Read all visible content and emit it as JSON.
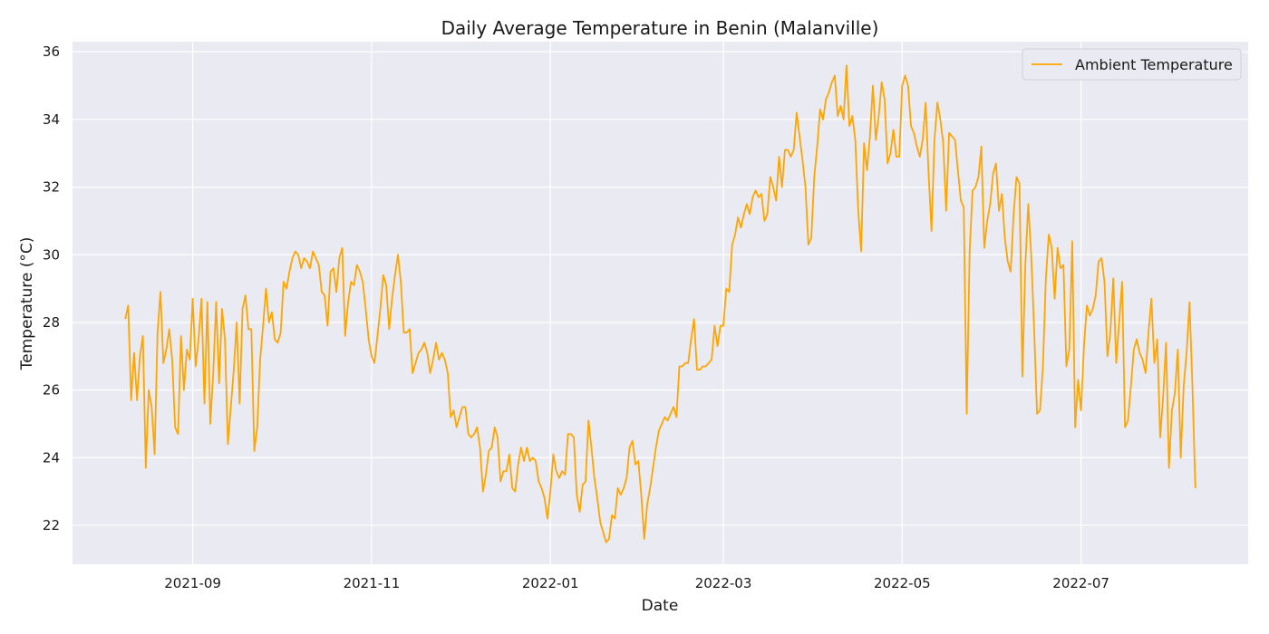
{
  "chart_data": {
    "type": "line",
    "title": "Daily Average Temperature in Benin (Malanville)",
    "xlabel": "Date",
    "ylabel": "Temperature (°C)",
    "x_start": "2021-08-09",
    "x_end": "2022-08-09",
    "xlim": [
      "2021-07-22",
      "2022-08-27"
    ],
    "ylim": [
      20.85,
      36.3
    ],
    "x_ticks": [
      {
        "date": "2021-09-01",
        "label": "2021-09"
      },
      {
        "date": "2021-11-01",
        "label": "2021-11"
      },
      {
        "date": "2022-01-01",
        "label": "2022-01"
      },
      {
        "date": "2022-03-01",
        "label": "2022-03"
      },
      {
        "date": "2022-05-01",
        "label": "2022-05"
      },
      {
        "date": "2022-07-01",
        "label": "2022-07"
      }
    ],
    "y_ticks": [
      22,
      24,
      26,
      28,
      30,
      32,
      34,
      36
    ],
    "grid": true,
    "legend": {
      "position": "upper-right"
    },
    "colors": {
      "line": "#FFA500",
      "plot_bg": "#EAEAF2",
      "grid": "#FFFFFF"
    },
    "series": [
      {
        "name": "Ambient Temperature",
        "values": [
          28.1,
          28.5,
          25.7,
          27.1,
          25.7,
          27.0,
          27.6,
          23.7,
          26.0,
          25.5,
          24.1,
          27.7,
          28.9,
          26.8,
          27.2,
          27.8,
          26.9,
          24.9,
          24.7,
          27.6,
          26.0,
          27.2,
          26.9,
          28.7,
          26.7,
          27.5,
          28.7,
          25.6,
          28.6,
          25.0,
          26.5,
          28.6,
          26.2,
          28.4,
          27.5,
          24.4,
          25.5,
          26.6,
          28.0,
          25.6,
          28.4,
          28.8,
          27.8,
          27.8,
          24.2,
          24.9,
          26.9,
          27.9,
          29.0,
          28.0,
          28.3,
          27.5,
          27.4,
          27.7,
          29.2,
          29.0,
          29.5,
          29.9,
          30.1,
          30.0,
          29.6,
          29.9,
          29.8,
          29.6,
          30.1,
          29.9,
          29.7,
          28.9,
          28.8,
          27.9,
          29.5,
          29.6,
          28.9,
          29.9,
          30.2,
          27.6,
          28.6,
          29.2,
          29.1,
          29.7,
          29.5,
          29.2,
          28.4,
          27.5,
          27.0,
          26.8,
          27.6,
          28.4,
          29.4,
          29.1,
          27.8,
          28.7,
          29.4,
          30.0,
          29.2,
          27.7,
          27.7,
          27.8,
          26.5,
          26.8,
          27.1,
          27.2,
          27.4,
          27.1,
          26.5,
          26.9,
          27.4,
          26.9,
          27.1,
          26.9,
          26.5,
          25.2,
          25.4,
          24.9,
          25.2,
          25.5,
          25.5,
          24.7,
          24.6,
          24.7,
          24.9,
          24.3,
          23.0,
          23.5,
          24.2,
          24.3,
          24.9,
          24.6,
          23.3,
          23.6,
          23.6,
          24.1,
          23.1,
          23.0,
          23.8,
          24.3,
          23.9,
          24.3,
          23.9,
          24.0,
          23.9,
          23.3,
          23.1,
          22.8,
          22.2,
          23.0,
          24.1,
          23.6,
          23.4,
          23.6,
          23.5,
          24.7,
          24.7,
          24.6,
          22.9,
          22.4,
          23.2,
          23.3,
          25.1,
          24.3,
          23.4,
          22.8,
          22.1,
          21.8,
          21.5,
          21.6,
          22.3,
          22.2,
          23.1,
          22.9,
          23.1,
          23.4,
          24.3,
          24.5,
          23.8,
          23.9,
          22.9,
          21.6,
          22.6,
          23.1,
          23.7,
          24.3,
          24.8,
          25.0,
          25.2,
          25.1,
          25.3,
          25.5,
          25.2,
          26.7,
          26.7,
          26.8,
          26.8,
          27.5,
          28.1,
          26.6,
          26.6,
          26.7,
          26.7,
          26.8,
          26.9,
          27.9,
          27.3,
          27.9,
          27.9,
          29.0,
          28.9,
          30.3,
          30.6,
          31.1,
          30.8,
          31.2,
          31.5,
          31.2,
          31.7,
          31.9,
          31.7,
          31.8,
          31.0,
          31.2,
          32.3,
          32.0,
          31.6,
          32.9,
          32.0,
          33.1,
          33.1,
          32.9,
          33.1,
          34.2,
          33.5,
          32.8,
          32.0,
          30.3,
          30.5,
          32.3,
          33.2,
          34.3,
          34.0,
          34.6,
          34.8,
          35.1,
          35.3,
          34.1,
          34.4,
          34.0,
          35.6,
          33.8,
          34.1,
          33.4,
          31.3,
          30.1,
          33.3,
          32.5,
          33.5,
          35.0,
          33.4,
          34.1,
          35.1,
          34.6,
          32.7,
          33.0,
          33.7,
          32.9,
          32.9,
          35.0,
          35.3,
          35.0,
          33.8,
          33.6,
          33.2,
          32.9,
          33.4,
          34.5,
          32.4,
          30.7,
          33.4,
          34.5,
          34.0,
          33.3,
          31.3,
          33.6,
          33.5,
          33.4,
          32.5,
          31.6,
          31.4,
          25.3,
          30.1,
          31.9,
          32.0,
          32.3,
          33.2,
          30.2,
          31.0,
          31.5,
          32.4,
          32.7,
          31.3,
          31.8,
          30.5,
          29.8,
          29.5,
          31.2,
          32.3,
          32.1,
          26.4,
          29.7,
          31.5,
          30.0,
          27.8,
          25.3,
          25.4,
          26.7,
          29.3,
          30.6,
          30.2,
          28.7,
          30.2,
          29.6,
          29.7,
          26.7,
          27.2,
          30.4,
          24.9,
          26.3,
          25.4,
          27.3,
          28.5,
          28.2,
          28.4,
          28.8,
          29.8,
          29.9,
          29.2,
          27.0,
          27.7,
          29.3,
          26.8,
          28.0,
          29.2,
          24.9,
          25.1,
          26.1,
          27.2,
          27.5,
          27.1,
          26.9,
          26.5,
          27.7,
          28.7,
          26.8,
          27.5,
          24.6,
          25.8,
          27.4,
          23.7,
          25.4,
          25.9,
          27.2,
          24.0,
          26.1,
          27.1,
          28.6,
          26.1,
          23.1
        ]
      }
    ]
  }
}
